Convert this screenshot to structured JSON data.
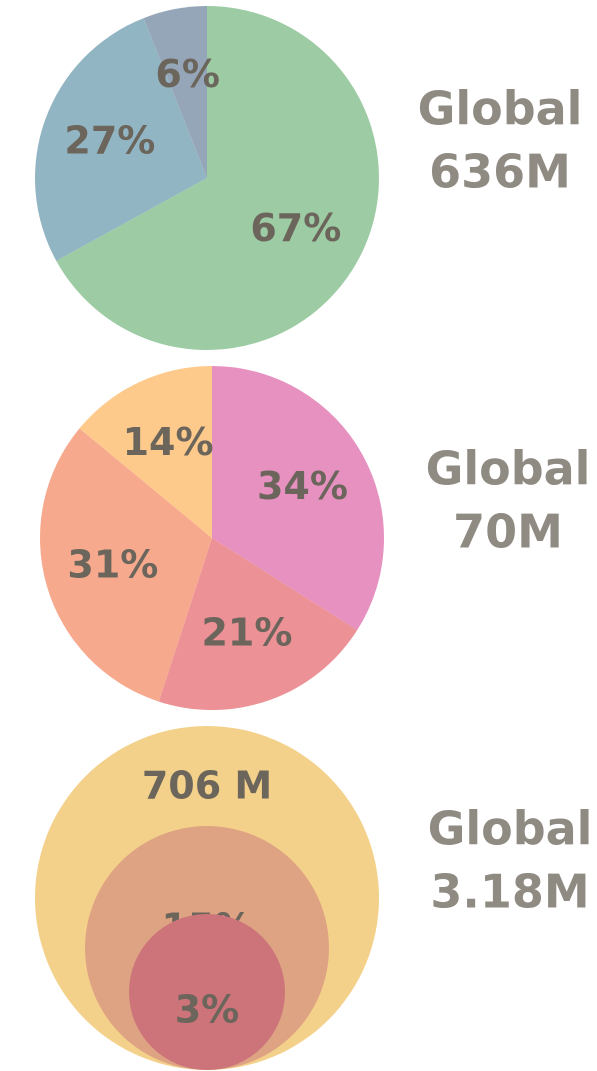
{
  "chart_data": [
    {
      "type": "pie",
      "title": [
        "Global",
        "636M"
      ],
      "values": [
        67,
        27,
        6
      ],
      "value_labels": [
        "67%",
        "27%",
        "6%"
      ],
      "colors": [
        "#9dcba3",
        "#92b5c3",
        "#95a6b8"
      ]
    },
    {
      "type": "pie",
      "title": [
        "Global",
        "70M"
      ],
      "values": [
        34,
        21,
        31,
        14
      ],
      "value_labels": [
        "34%",
        "21%",
        "31%",
        "14%"
      ],
      "colors": [
        "#e691c0",
        "#ec9196",
        "#f7a98e",
        "#fdca8b"
      ]
    },
    {
      "type": "nested_circles",
      "title": [
        "Global",
        "3.18M"
      ],
      "values": [
        706,
        15,
        3
      ],
      "value_labels": [
        "706 M",
        "15%",
        "3%"
      ],
      "colors": [
        "#f4d18a",
        "#dea383",
        "#cc7479"
      ]
    }
  ]
}
